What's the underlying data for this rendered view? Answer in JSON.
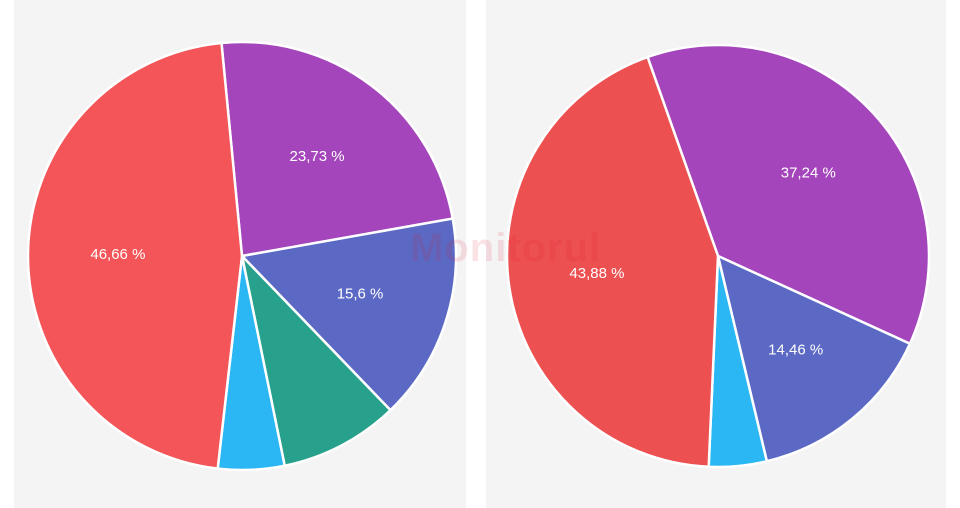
{
  "chart_data": [
    {
      "type": "pie",
      "slices": [
        {
          "value": 23.73,
          "label": "23,73 %",
          "color": "#a445bb"
        },
        {
          "value": 15.6,
          "label": "15,6 %",
          "color": "#5b69c4"
        },
        {
          "value": 9.0,
          "label": "",
          "color": "#27a08c"
        },
        {
          "value": 5.01,
          "label": "",
          "color": "#2bb6f4"
        },
        {
          "value": 46.66,
          "label": "46,66 %",
          "color": "#f35558"
        }
      ]
    },
    {
      "type": "pie",
      "slices": [
        {
          "value": 37.24,
          "label": "37,24 %",
          "color": "#a445bb"
        },
        {
          "value": 14.46,
          "label": "14,46 %",
          "color": "#5b69c4"
        },
        {
          "value": 4.42,
          "label": "",
          "color": "#2bb6f4"
        },
        {
          "value": 43.88,
          "label": "43,88 %",
          "color": "#ec5051"
        }
      ]
    }
  ],
  "watermark": "Monitorul"
}
